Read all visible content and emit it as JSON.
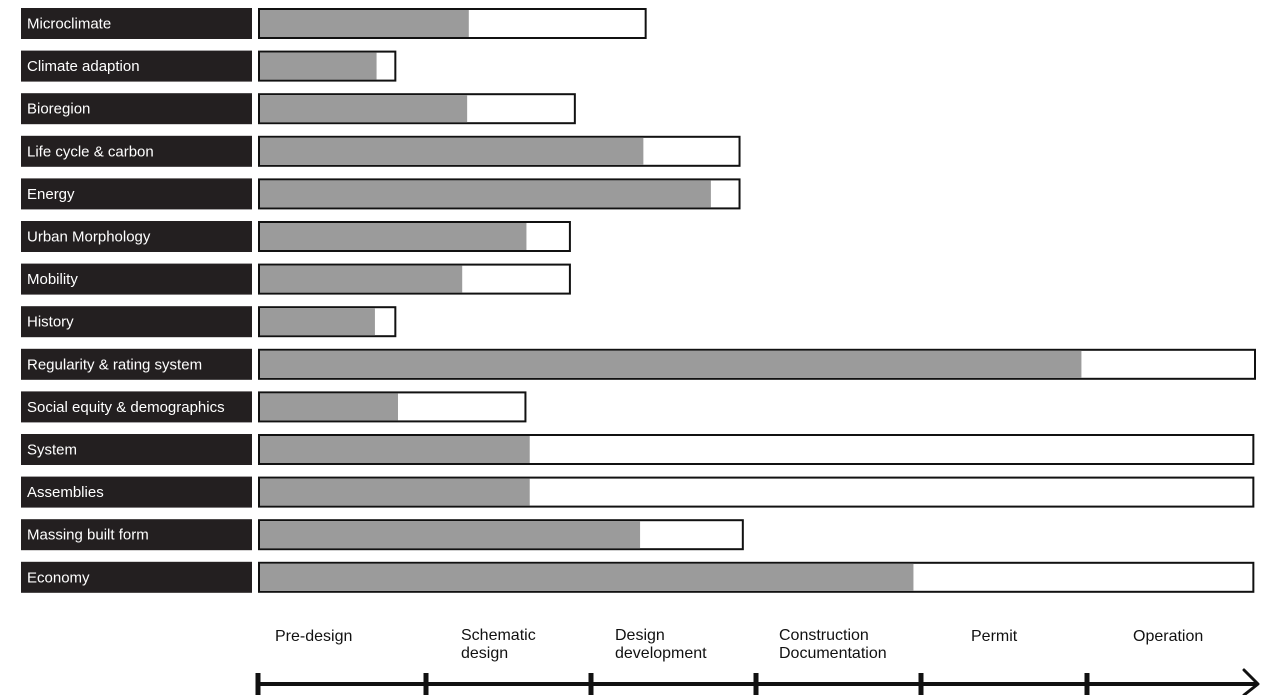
{
  "chart_data": {
    "type": "bar",
    "orientation": "horizontal",
    "stacked_outline": true,
    "categories": [
      "Microclimate",
      "Climate adaption",
      "Bioregion",
      "Life cycle & carbon",
      "Energy",
      "Urban Morphology",
      "Mobility",
      "History",
      "Regularity & rating system",
      "Social equity & demographics",
      "System",
      "Assemblies",
      "Massing built form",
      "Economy"
    ],
    "series": [
      {
        "values": [
          1.28,
          0.72,
          1.27,
          2.34,
          2.75,
          1.63,
          1.24,
          0.71,
          5.0,
          0.85,
          1.65,
          1.65,
          2.32,
          3.98
        ]
      },
      {
        "values": [
          2.36,
          0.84,
          1.93,
          2.93,
          2.93,
          1.9,
          1.9,
          0.84,
          6.06,
          1.63,
          6.05,
          6.05,
          2.95,
          6.05
        ]
      }
    ],
    "x_phases": [
      "Pre-design",
      "Schematic\ndesign",
      "Design\ndevelopment",
      "Construction\nDocumentation",
      "Permit",
      "Operation"
    ],
    "xlim": [
      0,
      6.06
    ],
    "grid": false,
    "legend": "none",
    "colors": {
      "label_bg": "#231f20",
      "label_text": "#ffffff",
      "fill": "#9b9b9b",
      "outline": "#111111",
      "axis": "#111111"
    }
  }
}
